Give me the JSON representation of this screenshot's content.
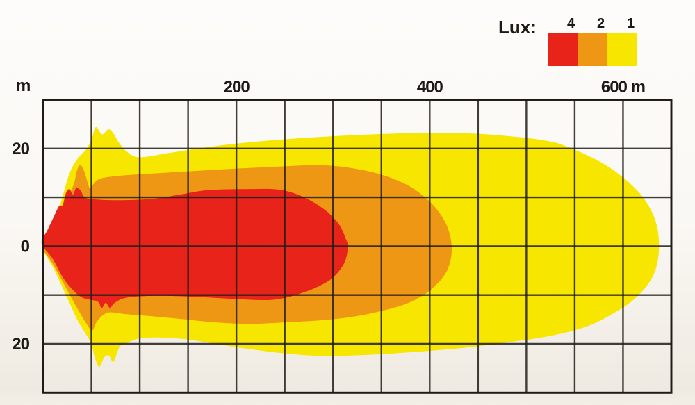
{
  "legend": {
    "title": "Lux:",
    "items": [
      {
        "label": "4",
        "color": "#e8231a"
      },
      {
        "label": "2",
        "color": "#ee9715"
      },
      {
        "label": "1",
        "color": "#f7e600"
      }
    ]
  },
  "chart_data": {
    "type": "area",
    "title": "",
    "legend_title": "Lux:",
    "legend_position": "top-right",
    "grid": true,
    "axes": {
      "x": {
        "min": 0,
        "max": 650,
        "grid_step": 50,
        "unit": "m",
        "ticks": [
          {
            "value": 200,
            "label": "200"
          },
          {
            "value": 400,
            "label": "400"
          },
          {
            "value": 600,
            "label": "600 m"
          }
        ]
      },
      "y": {
        "min": -30,
        "max": 30,
        "grid_step": 10,
        "unit": "m",
        "ticks": [
          {
            "value": 20,
            "label": "20"
          },
          {
            "value": 0,
            "label": "0"
          },
          {
            "value": -20,
            "label": "20"
          }
        ]
      }
    },
    "series": [
      {
        "name": "1 lux",
        "lux": 1,
        "color": "#f7e600",
        "points_unit": "m",
        "points": [
          [
            -1.5,
            0.3
          ],
          [
            8.6,
            3.5
          ],
          [
            18.7,
            9.2
          ],
          [
            27.3,
            14.9
          ],
          [
            36,
            18
          ],
          [
            44.6,
            19.8
          ],
          [
            50.3,
            22
          ],
          [
            54.7,
            24.4
          ],
          [
            61.2,
            22.9
          ],
          [
            69.1,
            23.9
          ],
          [
            79.2,
            21
          ],
          [
            86.4,
            19.4
          ],
          [
            99.4,
            18.2
          ],
          [
            128,
            19
          ],
          [
            157,
            19.9
          ],
          [
            200.1,
            21
          ],
          [
            257.7,
            22
          ],
          [
            329.7,
            22.8
          ],
          [
            401.7,
            23.2
          ],
          [
            459.3,
            22.9
          ],
          [
            516.9,
            21.7
          ],
          [
            545.7,
            20.1
          ],
          [
            584.6,
            16.3
          ],
          [
            617,
            10.9
          ],
          [
            633.5,
            5.2
          ],
          [
            637.1,
            -0.8
          ],
          [
            630.7,
            -6.2
          ],
          [
            611.9,
            -10.8
          ],
          [
            585.3,
            -14.3
          ],
          [
            558.7,
            -16.7
          ],
          [
            524.1,
            -18.4
          ],
          [
            488.1,
            -19.5
          ],
          [
            444.9,
            -20.6
          ],
          [
            401.7,
            -21.4
          ],
          [
            358.5,
            -22
          ],
          [
            315.3,
            -22.4
          ],
          [
            279.3,
            -22.4
          ],
          [
            243.3,
            -21.8
          ],
          [
            207.3,
            -20.9
          ],
          [
            178.5,
            -20
          ],
          [
            149.7,
            -19.1
          ],
          [
            121,
            -18.7
          ],
          [
            99.4,
            -18.9
          ],
          [
            86.4,
            -19.9
          ],
          [
            79.2,
            -20.6
          ],
          [
            72.7,
            -23.7
          ],
          [
            68.4,
            -22.4
          ],
          [
            63.4,
            -22.7
          ],
          [
            58.3,
            -24.7
          ],
          [
            54,
            -23.1
          ],
          [
            48.9,
            -19.6
          ],
          [
            36,
            -15.3
          ],
          [
            23.7,
            -10
          ],
          [
            11.5,
            -4.8
          ]
        ]
      },
      {
        "name": "2 lux",
        "lux": 2,
        "color": "#ee9715",
        "points_unit": "m",
        "points": [
          [
            -1,
            0.3
          ],
          [
            11.5,
            4.2
          ],
          [
            21.6,
            8
          ],
          [
            31.7,
            12.7
          ],
          [
            34.5,
            15.1
          ],
          [
            38.1,
            16.7
          ],
          [
            42.4,
            15.4
          ],
          [
            46,
            13.1
          ],
          [
            48.9,
            12
          ],
          [
            57.5,
            13.7
          ],
          [
            77.6,
            14.4
          ],
          [
            113.6,
            14.9
          ],
          [
            156.8,
            15.4
          ],
          [
            200.1,
            15.9
          ],
          [
            243.3,
            16.3
          ],
          [
            279.3,
            16.6
          ],
          [
            307.8,
            16.3
          ],
          [
            343.7,
            15
          ],
          [
            376.1,
            12.6
          ],
          [
            401.2,
            8.9
          ],
          [
            417,
            4.5
          ],
          [
            422.8,
            -0.4
          ],
          [
            417.7,
            -5.1
          ],
          [
            401.2,
            -8.9
          ],
          [
            378.2,
            -11.6
          ],
          [
            349.4,
            -13.3
          ],
          [
            318.5,
            -14.5
          ],
          [
            286.1,
            -15.2
          ],
          [
            250.1,
            -15.6
          ],
          [
            214.4,
            -15.9
          ],
          [
            178.5,
            -15.6
          ],
          [
            142.5,
            -14.9
          ],
          [
            110,
            -14.3
          ],
          [
            84.9,
            -13.9
          ],
          [
            66.9,
            -13.6
          ],
          [
            56.1,
            -15.3
          ],
          [
            51.1,
            -17.2
          ],
          [
            46,
            -16.2
          ],
          [
            33.1,
            -11.9
          ],
          [
            20.1,
            -7.2
          ],
          [
            9.4,
            -3.4
          ]
        ]
      },
      {
        "name": "4 lux",
        "lux": 4,
        "color": "#e8231a",
        "points_unit": "m",
        "points": [
          [
            -1.5,
            0.6
          ],
          [
            4.3,
            3.2
          ],
          [
            10.1,
            5.6
          ],
          [
            16.5,
            8.2
          ],
          [
            20.2,
            8.4
          ],
          [
            23.7,
            10.9
          ],
          [
            27.3,
            11.7
          ],
          [
            30.9,
            10.6
          ],
          [
            34.5,
            12
          ],
          [
            38.8,
            11.4
          ],
          [
            43.1,
            10
          ],
          [
            52.5,
            9.6
          ],
          [
            77.6,
            9.4
          ],
          [
            113.6,
            9.7
          ],
          [
            142.5,
            10.6
          ],
          [
            171.3,
            11.5
          ],
          [
            214.4,
            11.7
          ],
          [
            243.3,
            11.6
          ],
          [
            266.8,
            10.3
          ],
          [
            289.8,
            7.7
          ],
          [
            305.7,
            4.6
          ],
          [
            313.6,
            1.3
          ],
          [
            315.3,
            -0.2
          ],
          [
            311.7,
            -3.4
          ],
          [
            299.5,
            -6.5
          ],
          [
            280.8,
            -8.6
          ],
          [
            257.7,
            -10.2
          ],
          [
            236.1,
            -11
          ],
          [
            207.3,
            -10.9
          ],
          [
            171.3,
            -10.5
          ],
          [
            135.3,
            -10.2
          ],
          [
            106.4,
            -10.2
          ],
          [
            84.9,
            -10.6
          ],
          [
            74.1,
            -11.6
          ],
          [
            69.1,
            -12.6
          ],
          [
            64.8,
            -11.6
          ],
          [
            60.4,
            -12.7
          ],
          [
            56.1,
            -11.3
          ],
          [
            40.3,
            -10.5
          ],
          [
            27.3,
            -8.2
          ],
          [
            18.7,
            -5.8
          ],
          [
            10.1,
            -2.6
          ]
        ]
      }
    ]
  }
}
